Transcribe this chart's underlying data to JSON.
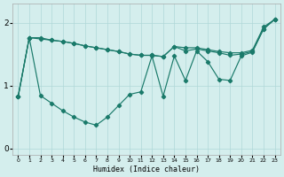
{
  "xlabel": "Humidex (Indice chaleur)",
  "background_color": "#d4eeed",
  "line_color": "#1a7a6a",
  "grid_color": "#b0d8d8",
  "x": [
    0,
    1,
    2,
    3,
    4,
    5,
    6,
    7,
    8,
    9,
    10,
    11,
    12,
    13,
    14,
    15,
    16,
    17,
    18,
    19,
    20,
    21,
    22,
    23
  ],
  "line_upper": [
    0.82,
    1.76,
    1.76,
    1.72,
    1.7,
    1.67,
    1.63,
    1.6,
    1.57,
    1.54,
    1.5,
    1.48,
    1.48,
    1.46,
    1.62,
    1.6,
    1.6,
    1.57,
    1.54,
    1.52,
    1.52,
    1.56,
    1.93,
    2.05
  ],
  "line_mid": [
    0.82,
    1.76,
    1.74,
    1.72,
    1.7,
    1.67,
    1.63,
    1.6,
    1.57,
    1.54,
    1.5,
    1.48,
    1.48,
    1.46,
    1.62,
    1.55,
    1.58,
    1.55,
    1.52,
    1.48,
    1.5,
    1.54,
    1.9,
    2.05
  ],
  "line_volatile": [
    0.82,
    1.76,
    0.84,
    0.72,
    0.6,
    0.5,
    0.42,
    0.37,
    0.5,
    0.68,
    0.86,
    0.9,
    1.47,
    0.83,
    1.47,
    1.08,
    1.55,
    1.38,
    1.1,
    1.08,
    1.47,
    1.53,
    1.9,
    2.05
  ],
  "ylim": [
    -0.1,
    2.3
  ],
  "xlim": [
    -0.5,
    23.5
  ],
  "yticks": [
    0,
    1,
    2
  ],
  "xticks": [
    0,
    1,
    2,
    3,
    4,
    5,
    6,
    7,
    8,
    9,
    10,
    11,
    12,
    13,
    14,
    15,
    16,
    17,
    18,
    19,
    20,
    21,
    22,
    23
  ]
}
